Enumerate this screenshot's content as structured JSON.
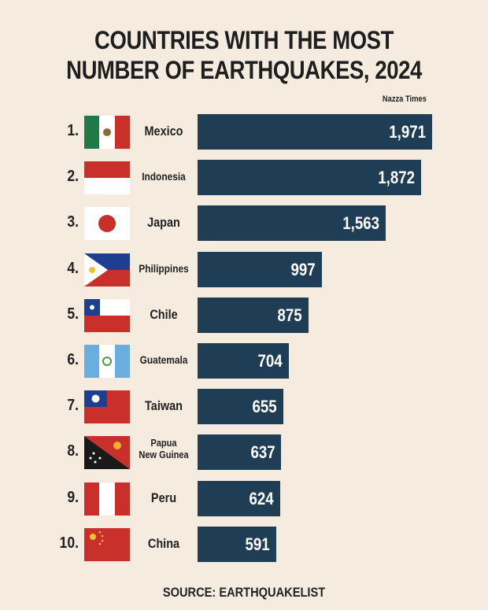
{
  "chart_data": {
    "type": "bar",
    "orientation": "horizontal",
    "title": "COUNTRIES WITH THE MOST NUMBER OF EARTHQUAKES, 2024",
    "title_lines": [
      "COUNTRIES WITH THE MOST",
      "NUMBER OF EARTHQUAKES, 2024"
    ],
    "credit": "Nazza Times",
    "source": "SOURCE: EARTHQUAKELIST",
    "bar_color": "#1f3e55",
    "background_color": "#f5ecdf",
    "ranks": [
      "1.",
      "2.",
      "3.",
      "4.",
      "5.",
      "6.",
      "7.",
      "8.",
      "9.",
      "10."
    ],
    "categories": [
      "Mexico",
      "Indonesia",
      "Japan",
      "Philippines",
      "Chile",
      "Guatemala",
      "Taiwan",
      "Papua New Guinea",
      "Peru",
      "China"
    ],
    "name_lines": [
      [
        "Mexico"
      ],
      [
        "Indonesia"
      ],
      [
        "Japan"
      ],
      [
        "Philippines"
      ],
      [
        "Chile"
      ],
      [
        "Guatemala"
      ],
      [
        "Taiwan"
      ],
      [
        "Papua",
        "New Guinea"
      ],
      [
        "Peru"
      ],
      [
        "China"
      ]
    ],
    "values": [
      1971,
      1872,
      1563,
      997,
      875,
      704,
      655,
      637,
      624,
      591
    ],
    "value_labels": [
      "1,971",
      "1,872",
      "1,563",
      "997",
      "875",
      "704",
      "655",
      "637",
      "624",
      "591"
    ],
    "flags": [
      "mexico-flag",
      "indonesia-flag",
      "japan-flag",
      "philippines-flag",
      "chile-flag",
      "guatemala-flag",
      "taiwan-flag",
      "papua-new-guinea-flag",
      "peru-flag",
      "china-flag"
    ]
  }
}
